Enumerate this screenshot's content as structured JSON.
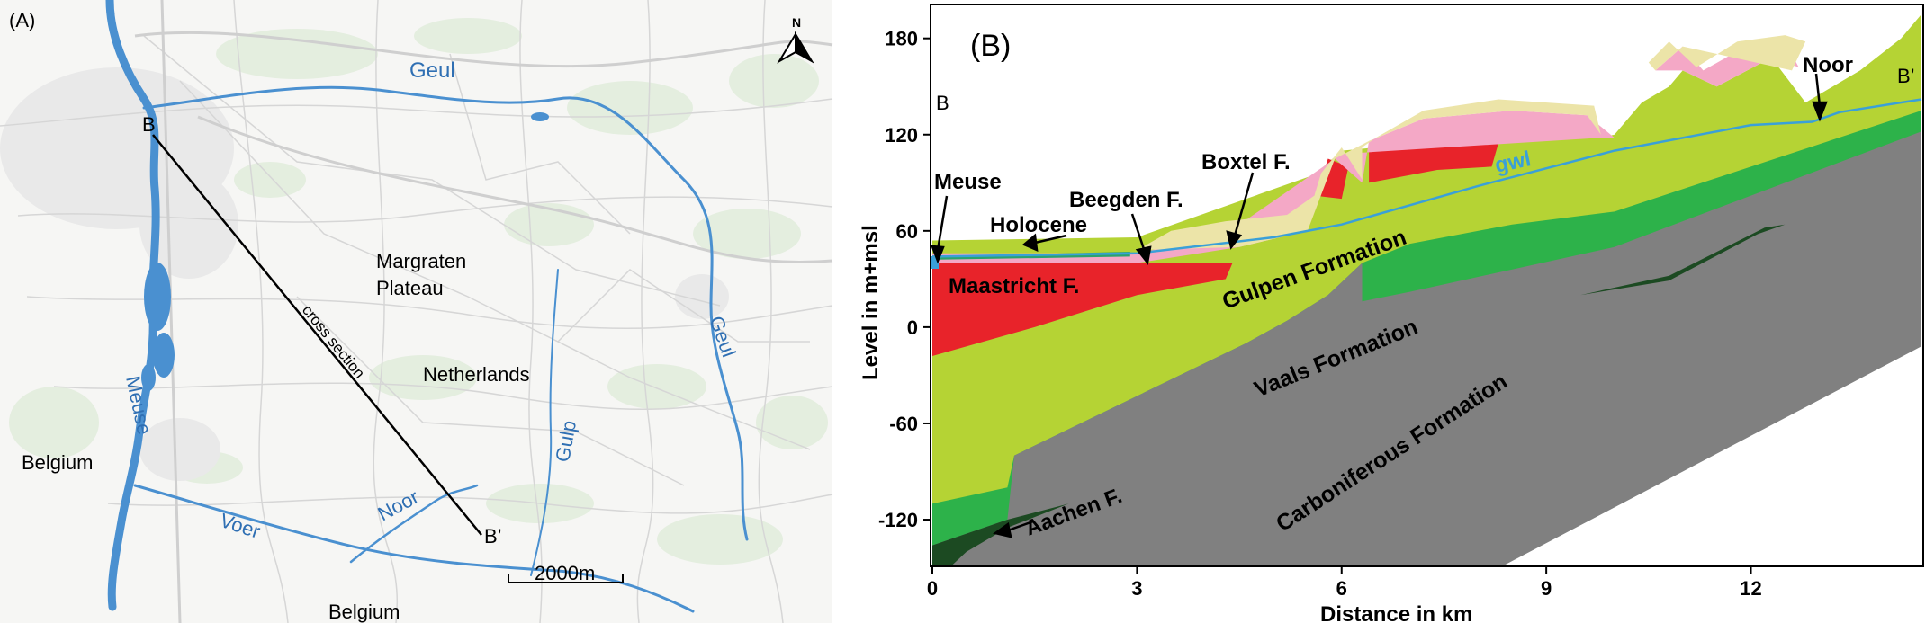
{
  "panel_a": {
    "label": "(A)",
    "places": {
      "b": "B",
      "b_prime": "B’",
      "margraten_1": "Margraten",
      "margraten_2": "Plateau",
      "netherlands": "Netherlands",
      "belgium_west": "Belgium",
      "belgium_south": "Belgium",
      "cross_section": "cross section"
    },
    "rivers": {
      "geul_north": "Geul",
      "geul_east": "Geul",
      "meuse": "Meuse",
      "voer": "Voer",
      "noor": "Noor",
      "gulp": "Gulp"
    },
    "north_arrow": "N",
    "scalebar": "2000m",
    "colors": {
      "river": "#4a90d0",
      "river_label": "#2f6fb3",
      "road": "#d8d8d8",
      "green": "#e6efe2"
    }
  },
  "panel_b": {
    "label": "(B)",
    "end_labels": {
      "left": "B",
      "right": "B’"
    },
    "annotations": {
      "meuse": "Meuse",
      "holocene": "Holocene",
      "beegden": "Beegden F.",
      "boxtel": "Boxtel F.",
      "noor": "Noor",
      "gwl": "gwl",
      "maastricht": "Maastricht F.",
      "gulpen": "Gulpen Formation",
      "vaals": "Vaals Formation",
      "carboniferous": "Carboniferous Formation",
      "aachen": "Aachen F."
    },
    "axes": {
      "xlabel": "Distance in km",
      "ylabel": "Level in m+msl",
      "x_ticks": [
        0,
        3,
        6,
        9,
        12
      ],
      "y_ticks": [
        180,
        120,
        60,
        0,
        -60,
        -120
      ],
      "x_range": [
        0,
        14.5
      ],
      "y_range": [
        -148,
        200
      ]
    },
    "colors": {
      "gulpen": "#b5d334",
      "vaals": "#2db24a",
      "carboniferous": "#808080",
      "aachen": "#1c4a22",
      "maastricht": "#e8232a",
      "boxtel": "#f4a8c6",
      "beegden": "#ece4a8",
      "holocene": "#2aa36d",
      "gwl": "#3aa0d8"
    }
  }
}
